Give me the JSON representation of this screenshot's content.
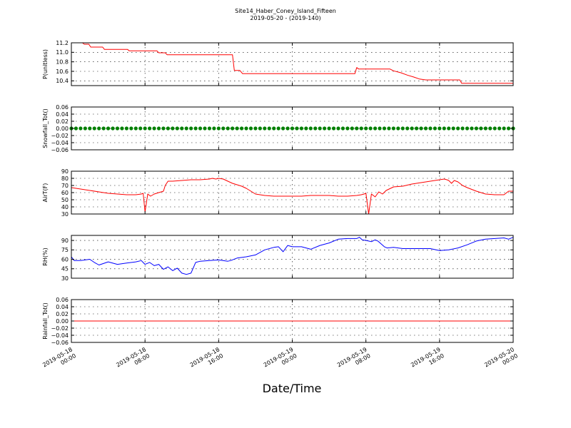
{
  "figure": {
    "title": "Site14_Haber_Coney_Island_Fifteen",
    "subtitle": "2019-05-20 - (2019-140)",
    "xlabel": "Date/Time"
  },
  "chart_data": [
    {
      "type": "line",
      "ylabel": "P(unitless)",
      "color": "#ff0000",
      "xlim": [
        0,
        48
      ],
      "ylim": [
        10.3,
        11.2
      ],
      "yticks": [
        "11.2",
        "11.0",
        "10.8",
        "10.6",
        "10.4"
      ],
      "ytick_values": [
        11.2,
        11.0,
        10.8,
        10.6,
        10.4
      ],
      "xtick_values": [
        0,
        8,
        16,
        24,
        32,
        40,
        48
      ],
      "xtick_labels": [],
      "grid": true,
      "series": [
        {
          "x": [
            0,
            1.2,
            1.4,
            1.9,
            2.1,
            3.4,
            3.6,
            6.1,
            6.3,
            9.3,
            9.5,
            10.2,
            10.4,
            17.5,
            17.7,
            18.3,
            18.6,
            24,
            30.8,
            31,
            31.2,
            34.6,
            35,
            35.8,
            36.5,
            37.2,
            37.8,
            38.5,
            40,
            42.2,
            42.4,
            48
          ],
          "y": [
            11.2,
            11.2,
            11.17,
            11.17,
            11.11,
            11.11,
            11.06,
            11.06,
            11.03,
            11.03,
            10.99,
            10.99,
            10.95,
            10.95,
            10.62,
            10.62,
            10.55,
            10.55,
            10.55,
            10.68,
            10.65,
            10.65,
            10.61,
            10.57,
            10.52,
            10.48,
            10.44,
            10.42,
            10.42,
            10.42,
            10.35,
            10.35
          ]
        }
      ]
    },
    {
      "type": "scatter",
      "ylabel": "Snowfall_Tot()",
      "color": "#007f00",
      "xlim": [
        0,
        48
      ],
      "ylim": [
        -0.06,
        0.06
      ],
      "yticks": [
        "0.06",
        "0.04",
        "0.02",
        "0.00",
        "−0.02",
        "−0.04",
        "−0.06"
      ],
      "ytick_values": [
        0.06,
        0.04,
        0.02,
        0.0,
        -0.02,
        -0.04,
        -0.06
      ],
      "xtick_values": [
        0,
        8,
        16,
        24,
        32,
        40,
        48
      ],
      "xtick_labels": [],
      "grid": true,
      "series": [
        {
          "x": [
            0,
            0.5,
            1,
            1.5,
            2,
            2.5,
            3,
            3.5,
            4,
            4.5,
            5,
            5.5,
            6,
            6.5,
            7,
            7.5,
            8,
            8.5,
            9,
            9.5,
            10,
            10.5,
            11,
            11.5,
            12,
            12.5,
            13,
            13.5,
            14,
            14.5,
            15,
            15.5,
            16,
            16.5,
            17,
            17.5,
            18,
            18.5,
            19,
            19.5,
            20,
            20.5,
            21,
            21.5,
            22,
            22.5,
            23,
            23.5,
            24,
            24.5,
            25,
            25.5,
            26,
            26.5,
            27,
            27.5,
            28,
            28.5,
            29,
            29.5,
            30,
            30.5,
            31,
            31.5,
            32,
            32.5,
            33,
            33.5,
            34,
            34.5,
            35,
            35.5,
            36,
            36.5,
            37,
            37.5,
            38,
            38.5,
            39,
            39.5,
            40,
            40.5,
            41,
            41.5,
            42,
            42.5,
            43,
            43.5,
            44,
            44.5,
            45,
            45.5,
            46,
            46.5,
            47,
            47.5,
            48
          ],
          "y": [
            0,
            0,
            0,
            0,
            0,
            0,
            0,
            0,
            0,
            0,
            0,
            0,
            0,
            0,
            0,
            0,
            0,
            0,
            0,
            0,
            0,
            0,
            0,
            0,
            0,
            0,
            0,
            0,
            0,
            0,
            0,
            0,
            0,
            0,
            0,
            0,
            0,
            0,
            0,
            0,
            0,
            0,
            0,
            0,
            0,
            0,
            0,
            0,
            0,
            0,
            0,
            0,
            0,
            0,
            0,
            0,
            0,
            0,
            0,
            0,
            0,
            0,
            0,
            0,
            0,
            0,
            0,
            0,
            0,
            0,
            0,
            0,
            0,
            0,
            0,
            0,
            0,
            0,
            0,
            0,
            0,
            0,
            0,
            0,
            0,
            0,
            0,
            0,
            0,
            0,
            0,
            0,
            0,
            0,
            0,
            0,
            0
          ]
        }
      ]
    },
    {
      "type": "line",
      "ylabel": "AirT(F)",
      "color": "#ff0000",
      "xlim": [
        0,
        48
      ],
      "ylim": [
        30,
        90
      ],
      "yticks": [
        "90",
        "80",
        "70",
        "60",
        "50",
        "40",
        "30"
      ],
      "ytick_values": [
        90,
        80,
        70,
        60,
        50,
        40,
        30
      ],
      "xtick_values": [
        0,
        8,
        16,
        24,
        32,
        40,
        48
      ],
      "xtick_labels": [],
      "grid": true,
      "series": [
        {
          "x": [
            0,
            1,
            2,
            3,
            4,
            5,
            6,
            7,
            7.6,
            7.8,
            8,
            8.3,
            8.6,
            9,
            9.5,
            10,
            10.2,
            10.5,
            11,
            12,
            13,
            14,
            15,
            15.3,
            15.7,
            16,
            16.5,
            17,
            17.5,
            18,
            18.5,
            19,
            19.5,
            20,
            21,
            22,
            23,
            24,
            25,
            26,
            27,
            28,
            29,
            30,
            31,
            31.5,
            31.8,
            32,
            32.3,
            32.6,
            33,
            33.4,
            33.8,
            34.2,
            35,
            36,
            37,
            38,
            39,
            40,
            40.5,
            40.8,
            41,
            41.3,
            41.6,
            42,
            42.5,
            43,
            44,
            45,
            46,
            47,
            47.5,
            48
          ],
          "y": [
            67,
            65,
            63,
            61,
            59,
            58,
            57,
            57,
            58,
            59,
            33,
            58,
            55,
            58,
            60,
            62,
            70,
            76,
            76,
            77,
            78,
            78,
            79,
            80,
            79,
            80,
            79,
            76,
            73,
            71,
            69,
            66,
            62,
            58,
            56,
            55,
            55,
            55,
            55,
            56,
            56,
            56,
            55,
            55,
            56,
            57,
            58,
            59,
            30,
            58,
            54,
            61,
            58,
            63,
            68,
            69,
            72,
            74,
            76,
            78,
            79,
            78,
            77,
            73,
            77,
            75,
            70,
            67,
            62,
            58,
            57,
            57,
            62,
            62
          ]
        }
      ]
    },
    {
      "type": "line",
      "ylabel": "RH(%)",
      "color": "#0000ff",
      "xlim": [
        0,
        48
      ],
      "ylim": [
        30,
        98
      ],
      "yticks": [
        "90",
        "75",
        "60",
        "45",
        "30"
      ],
      "ytick_values": [
        90,
        75,
        60,
        45,
        30
      ],
      "xtick_values": [
        0,
        8,
        16,
        24,
        32,
        40,
        48
      ],
      "xtick_labels": [],
      "grid": true,
      "series": [
        {
          "x": [
            0,
            0.3,
            1,
            2,
            2.5,
            3,
            4,
            5,
            6,
            7,
            7.6,
            8,
            8.5,
            9,
            9.5,
            10,
            10.5,
            11,
            11.5,
            12,
            12.5,
            13,
            13.5,
            14,
            15,
            16,
            17,
            17.3,
            18,
            19,
            20,
            21,
            22,
            22.5,
            23,
            23.5,
            24,
            25,
            26,
            27,
            28,
            29,
            30,
            31,
            31.3,
            31.6,
            32,
            32.3,
            32.6,
            33,
            33.3,
            34,
            34.3,
            35,
            36,
            37,
            38,
            39,
            40,
            41,
            42,
            43,
            44,
            45,
            46,
            47,
            47.5,
            48
          ],
          "y": [
            64,
            58,
            58,
            60,
            55,
            51,
            56,
            52,
            54,
            56,
            58,
            52,
            55,
            50,
            52,
            44,
            48,
            42,
            46,
            38,
            36,
            38,
            55,
            57,
            58,
            59,
            57,
            58,
            62,
            64,
            67,
            75,
            79,
            80,
            72,
            82,
            80,
            80,
            76,
            82,
            86,
            92,
            93,
            93,
            95,
            91,
            90,
            89,
            88,
            91,
            89,
            80,
            78,
            79,
            77,
            77,
            77,
            77,
            74,
            75,
            78,
            83,
            89,
            92,
            93,
            94,
            92,
            95
          ]
        }
      ]
    },
    {
      "type": "line",
      "ylabel": "Rainfall_Tot()",
      "color": "#ff0000",
      "xlim": [
        0,
        48
      ],
      "ylim": [
        -0.06,
        0.06
      ],
      "yticks": [
        "0.06",
        "0.04",
        "0.02",
        "0.00",
        "−0.02",
        "−0.04",
        "−0.06"
      ],
      "ytick_values": [
        0.06,
        0.04,
        0.02,
        0.0,
        -0.02,
        -0.04,
        -0.06
      ],
      "xtick_values": [
        0,
        8,
        16,
        24,
        32,
        40,
        48
      ],
      "xtick_labels": [
        [
          "2019-05-18",
          "00:00"
        ],
        [
          "2019-05-18",
          "08:00"
        ],
        [
          "2019-05-18",
          "16:00"
        ],
        [
          "2019-05-19",
          "00:00"
        ],
        [
          "2019-05-19",
          "08:00"
        ],
        [
          "2019-05-19",
          "16:00"
        ],
        [
          "2019-05-20",
          "00:00"
        ]
      ],
      "grid": true,
      "series": [
        {
          "x": [
            0,
            48
          ],
          "y": [
            0,
            0
          ]
        }
      ]
    }
  ]
}
